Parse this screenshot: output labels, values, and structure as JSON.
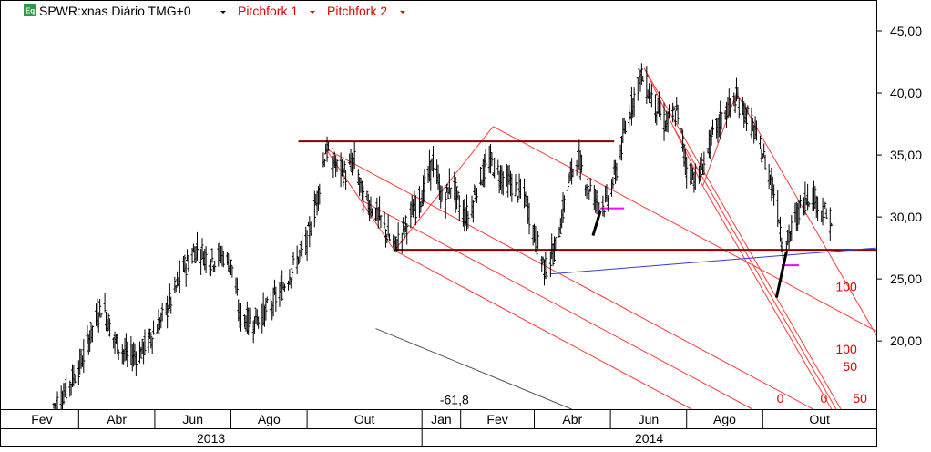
{
  "header": {
    "symbol_badge": "Eq",
    "title": "SPWR:xnas Diário TMG+0",
    "studies": [
      "Pitchfork 1",
      "Pitchfork 2"
    ]
  },
  "colors": {
    "price_bars": "#000000",
    "pitchfork_lines": "#ff3b3b",
    "pitchfork_labels": "#e00000",
    "horizontal_levels": "#8b0000",
    "trendline": "#3a3ad0",
    "marker": "#ff00ff",
    "fib_line": "#555555",
    "grid": "#e6e6e6"
  },
  "chart_data": {
    "type": "ohlc",
    "x_scale": "date",
    "y_axis_side": "right",
    "ylim": [
      14.5,
      47.5
    ],
    "y_ticks": [
      "20,00",
      "25,00",
      "30,00",
      "35,00",
      "40,00",
      "45,00"
    ],
    "y_tick_values": [
      20,
      25,
      30,
      35,
      40,
      45
    ],
    "x_range": [
      "2013-01-28",
      "2014-12-31"
    ],
    "month_labels": [
      {
        "label": "Fev",
        "date": "2013-02-01"
      },
      {
        "label": "Abr",
        "date": "2013-04-01"
      },
      {
        "label": "Jun",
        "date": "2013-06-01"
      },
      {
        "label": "Ago",
        "date": "2013-08-01"
      },
      {
        "label": "Out",
        "date": "2013-10-01"
      },
      {
        "label": "Jan",
        "date": "2014-01-01"
      },
      {
        "label": "Fev",
        "date": "2014-02-01"
      },
      {
        "label": "Abr",
        "date": "2014-04-01"
      },
      {
        "label": "Jun",
        "date": "2014-06-01"
      },
      {
        "label": "Ago",
        "date": "2014-08-01"
      },
      {
        "label": "Out",
        "date": "2014-10-01"
      }
    ],
    "year_labels": [
      {
        "label": "2013",
        "date": "2013-01-01"
      },
      {
        "label": "2014",
        "date": "2014-01-01"
      }
    ],
    "price_path": [
      [
        "2013-03-12",
        14.8
      ],
      [
        "2013-03-22",
        16.0
      ],
      [
        "2013-04-04",
        18.5
      ],
      [
        "2013-04-12",
        21.0
      ],
      [
        "2013-04-20",
        23.0
      ],
      [
        "2013-04-30",
        20.0
      ],
      [
        "2013-05-10",
        18.8
      ],
      [
        "2013-05-20",
        19.0
      ],
      [
        "2013-05-30",
        20.5
      ],
      [
        "2013-06-08",
        22.0
      ],
      [
        "2013-06-15",
        23.5
      ],
      [
        "2013-06-25",
        26.0
      ],
      [
        "2013-07-05",
        27.5
      ],
      [
        "2013-07-15",
        26.5
      ],
      [
        "2013-07-25",
        27.0
      ],
      [
        "2013-08-02",
        26.0
      ],
      [
        "2013-08-08",
        22.0
      ],
      [
        "2013-08-18",
        21.5
      ],
      [
        "2013-08-30",
        22.5
      ],
      [
        "2013-09-10",
        24.0
      ],
      [
        "2013-09-20",
        26.0
      ],
      [
        "2013-10-01",
        28.0
      ],
      [
        "2013-10-10",
        32.0
      ],
      [
        "2013-10-16",
        35.5
      ],
      [
        "2013-10-25",
        34.0
      ],
      [
        "2013-11-01",
        33.5
      ],
      [
        "2013-11-08",
        34.5
      ],
      [
        "2013-11-15",
        31.5
      ],
      [
        "2013-11-25",
        30.5
      ],
      [
        "2013-12-05",
        28.5
      ],
      [
        "2013-12-10",
        27.6
      ],
      [
        "2013-12-20",
        29.5
      ],
      [
        "2014-01-02",
        32.0
      ],
      [
        "2014-01-10",
        34.5
      ],
      [
        "2014-01-18",
        31.0
      ],
      [
        "2014-01-25",
        33.0
      ],
      [
        "2014-02-01",
        30.5
      ],
      [
        "2014-02-08",
        30.0
      ],
      [
        "2014-02-14",
        32.5
      ],
      [
        "2014-02-24",
        34.5
      ],
      [
        "2014-03-04",
        33.5
      ],
      [
        "2014-03-15",
        32.5
      ],
      [
        "2014-03-25",
        31.5
      ],
      [
        "2014-04-01",
        28.5
      ],
      [
        "2014-04-10",
        25.8
      ],
      [
        "2014-04-18",
        27.5
      ],
      [
        "2014-04-28",
        32.5
      ],
      [
        "2014-05-05",
        35.0
      ],
      [
        "2014-05-12",
        33.0
      ],
      [
        "2014-05-20",
        31.5
      ],
      [
        "2014-05-28",
        31.0
      ],
      [
        "2014-06-05",
        33.5
      ],
      [
        "2014-06-15",
        38.0
      ],
      [
        "2014-06-25",
        41.5
      ],
      [
        "2014-07-05",
        39.5
      ],
      [
        "2014-07-15",
        37.5
      ],
      [
        "2014-07-25",
        38.5
      ],
      [
        "2014-08-01",
        34.0
      ],
      [
        "2014-08-10",
        33.0
      ],
      [
        "2014-08-20",
        36.0
      ],
      [
        "2014-09-01",
        38.5
      ],
      [
        "2014-09-10",
        39.5
      ],
      [
        "2014-09-20",
        38.0
      ],
      [
        "2014-10-01",
        35.0
      ],
      [
        "2014-10-08",
        33.0
      ],
      [
        "2014-10-14",
        30.0
      ],
      [
        "2014-10-18",
        27.0
      ],
      [
        "2014-10-24",
        29.0
      ],
      [
        "2014-11-01",
        31.0
      ],
      [
        "2014-11-08",
        32.0
      ],
      [
        "2014-11-15",
        31.0
      ],
      [
        "2014-11-25",
        29.5
      ]
    ],
    "horizontal_levels": [
      {
        "from": "2013-09-24",
        "to": "2014-06-04",
        "price": 36.1
      },
      {
        "from": "2013-12-09",
        "to": "2014-12-31",
        "price": 27.35
      }
    ],
    "trendline": {
      "from": [
        "2014-04-14",
        25.4
      ],
      "to": [
        "2014-12-31",
        27.5
      ]
    },
    "fib_line": {
      "from": [
        "2013-11-25",
        21.0
      ],
      "to": [
        "2014-05-01",
        14.5
      ],
      "label": "-61,8"
    },
    "pitchfork_1": {
      "pivots": [
        [
          "2013-10-16",
          35.5
        ],
        [
          "2013-12-10",
          27.3
        ],
        [
          "2014-02-27",
          37.3
        ]
      ],
      "handle_to": [
        "2014-06-24",
        22.0
      ],
      "labels": [
        {
          "text": "100",
          "at": [
            "2014-12-07",
            24.0
          ]
        },
        {
          "text": "0",
          "at": [
            "2014-10-15",
            15.0
          ]
        },
        {
          "text": "50",
          "at": [
            "2014-12-10",
            17.6
          ]
        },
        {
          "text": "100",
          "at": [
            "2014-12-07",
            19.0
          ]
        }
      ]
    },
    "pitchfork_2": {
      "pivots": [
        [
          "2014-06-28",
          42.0
        ],
        [
          "2014-08-14",
          32.5
        ],
        [
          "2014-09-10",
          40.0
        ]
      ],
      "handle_to": [
        "2014-10-12",
        23.5
      ],
      "labels": [
        {
          "text": "0",
          "at": [
            "2014-11-19",
            15.0
          ]
        },
        {
          "text": "50",
          "at": [
            "2014-12-18",
            15.0
          ]
        }
      ]
    },
    "markers": [
      {
        "from": [
          "2014-05-24",
          30.7
        ],
        "to": [
          "2014-06-12",
          30.7
        ]
      },
      {
        "from": [
          "2014-10-16",
          26.1
        ],
        "to": [
          "2014-10-30",
          26.1
        ]
      }
    ],
    "strokes": [
      {
        "from": [
          "2014-05-18",
          28.5
        ],
        "to": [
          "2014-05-24",
          30.5
        ]
      },
      {
        "from": [
          "2014-10-12",
          23.5
        ],
        "to": [
          "2014-10-20",
          27.2
        ]
      }
    ]
  }
}
